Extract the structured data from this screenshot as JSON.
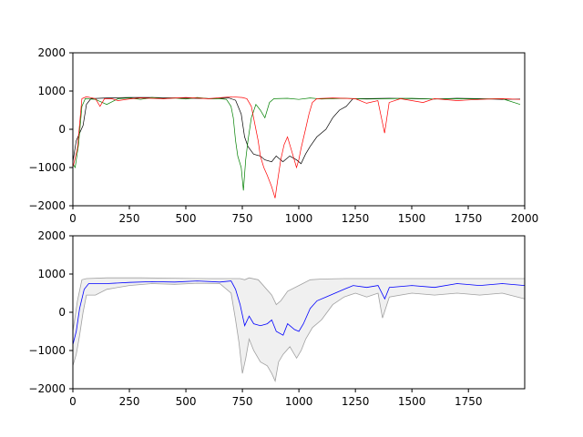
{
  "chart_data": [
    {
      "type": "line",
      "xlim": [
        0,
        2000
      ],
      "ylim": [
        -2000,
        2000
      ],
      "xticks": [
        0,
        250,
        500,
        750,
        1000,
        1250,
        1500,
        1750,
        2000
      ],
      "yticks": [
        -2000,
        -1000,
        0,
        1000,
        2000
      ],
      "xtick_labels": [
        "0",
        "250",
        "500",
        "750",
        "1000",
        "1250",
        "1500",
        "1750",
        "2000"
      ],
      "ytick_labels": [
        "−2000",
        "−1000",
        "0",
        "1000",
        "2000"
      ],
      "grid": false,
      "series": [
        {
          "color": "#000000",
          "points": [
            [
              0,
              -850
            ],
            [
              15,
              -300
            ],
            [
              30,
              -100
            ],
            [
              45,
              100
            ],
            [
              60,
              650
            ],
            [
              80,
              800
            ],
            [
              150,
              820
            ],
            [
              250,
              830
            ],
            [
              350,
              830
            ],
            [
              450,
              820
            ],
            [
              550,
              810
            ],
            [
              620,
              800
            ],
            [
              690,
              820
            ],
            [
              720,
              760
            ],
            [
              745,
              400
            ],
            [
              760,
              -200
            ],
            [
              775,
              -450
            ],
            [
              800,
              -650
            ],
            [
              830,
              -700
            ],
            [
              850,
              -800
            ],
            [
              880,
              -850
            ],
            [
              900,
              -700
            ],
            [
              930,
              -850
            ],
            [
              960,
              -700
            ],
            [
              990,
              -800
            ],
            [
              1010,
              -900
            ],
            [
              1030,
              -650
            ],
            [
              1050,
              -450
            ],
            [
              1080,
              -200
            ],
            [
              1120,
              0
            ],
            [
              1150,
              300
            ],
            [
              1180,
              500
            ],
            [
              1210,
              600
            ],
            [
              1240,
              800
            ],
            [
              1300,
              800
            ],
            [
              1400,
              810
            ],
            [
              1500,
              800
            ],
            [
              1600,
              790
            ],
            [
              1700,
              810
            ],
            [
              1800,
              800
            ],
            [
              1900,
              780
            ],
            [
              1980,
              790
            ]
          ]
        },
        {
          "color": "#008000",
          "points": [
            [
              0,
              -900
            ],
            [
              10,
              -1000
            ],
            [
              25,
              -400
            ],
            [
              40,
              600
            ],
            [
              55,
              800
            ],
            [
              100,
              780
            ],
            [
              150,
              650
            ],
            [
              200,
              800
            ],
            [
              250,
              820
            ],
            [
              300,
              780
            ],
            [
              350,
              830
            ],
            [
              400,
              800
            ],
            [
              450,
              820
            ],
            [
              500,
              790
            ],
            [
              550,
              830
            ],
            [
              600,
              800
            ],
            [
              650,
              800
            ],
            [
              680,
              780
            ],
            [
              700,
              600
            ],
            [
              710,
              300
            ],
            [
              720,
              -300
            ],
            [
              730,
              -700
            ],
            [
              745,
              -1000
            ],
            [
              755,
              -1600
            ],
            [
              765,
              -800
            ],
            [
              775,
              -300
            ],
            [
              790,
              300
            ],
            [
              810,
              650
            ],
            [
              830,
              500
            ],
            [
              850,
              300
            ],
            [
              870,
              700
            ],
            [
              890,
              800
            ],
            [
              950,
              810
            ],
            [
              1000,
              780
            ],
            [
              1050,
              820
            ],
            [
              1100,
              790
            ],
            [
              1150,
              800
            ],
            [
              1200,
              810
            ],
            [
              1300,
              790
            ],
            [
              1400,
              800
            ],
            [
              1500,
              810
            ],
            [
              1600,
              790
            ],
            [
              1700,
              800
            ],
            [
              1800,
              790
            ],
            [
              1900,
              800
            ],
            [
              1980,
              650
            ]
          ]
        },
        {
          "color": "#ff0000",
          "points": [
            [
              0,
              -1000
            ],
            [
              20,
              -500
            ],
            [
              40,
              800
            ],
            [
              60,
              850
            ],
            [
              100,
              800
            ],
            [
              120,
              600
            ],
            [
              140,
              800
            ],
            [
              170,
              800
            ],
            [
              200,
              750
            ],
            [
              260,
              800
            ],
            [
              300,
              820
            ],
            [
              400,
              800
            ],
            [
              500,
              830
            ],
            [
              600,
              800
            ],
            [
              700,
              850
            ],
            [
              750,
              830
            ],
            [
              770,
              800
            ],
            [
              790,
              600
            ],
            [
              800,
              300
            ],
            [
              810,
              0
            ],
            [
              820,
              -300
            ],
            [
              830,
              -700
            ],
            [
              845,
              -1000
            ],
            [
              860,
              -1200
            ],
            [
              880,
              -1500
            ],
            [
              895,
              -1800
            ],
            [
              905,
              -1400
            ],
            [
              920,
              -800
            ],
            [
              935,
              -400
            ],
            [
              950,
              -200
            ],
            [
              970,
              -600
            ],
            [
              990,
              -1000
            ],
            [
              1000,
              -800
            ],
            [
              1010,
              -500
            ],
            [
              1030,
              0
            ],
            [
              1045,
              400
            ],
            [
              1060,
              700
            ],
            [
              1080,
              800
            ],
            [
              1150,
              820
            ],
            [
              1250,
              800
            ],
            [
              1300,
              680
            ],
            [
              1350,
              750
            ],
            [
              1380,
              -100
            ],
            [
              1400,
              700
            ],
            [
              1450,
              800
            ],
            [
              1500,
              750
            ],
            [
              1550,
              700
            ],
            [
              1600,
              800
            ],
            [
              1700,
              750
            ],
            [
              1800,
              780
            ],
            [
              1900,
              800
            ],
            [
              1980,
              780
            ]
          ]
        }
      ]
    },
    {
      "type": "area",
      "xlim": [
        0,
        1999
      ],
      "ylim": [
        -2000,
        2000
      ],
      "xticks": [
        0,
        250,
        500,
        750,
        1000,
        1250,
        1500,
        1750
      ],
      "yticks": [
        -2000,
        -1000,
        0,
        1000,
        2000
      ],
      "xtick_labels": [
        "0",
        "250",
        "500",
        "750",
        "1000",
        "1250",
        "1500",
        "1750"
      ],
      "ytick_labels": [
        "−2000",
        "−1000",
        "0",
        "1000",
        "2000"
      ],
      "grid": false,
      "band_fill": "#f0f0f0",
      "band_edge": "#a0a0a0",
      "mean_color": "#0000ff",
      "upper": [
        [
          0,
          -500
        ],
        [
          20,
          300
        ],
        [
          40,
          850
        ],
        [
          60,
          880
        ],
        [
          150,
          900
        ],
        [
          300,
          900
        ],
        [
          450,
          890
        ],
        [
          600,
          880
        ],
        [
          700,
          880
        ],
        [
          740,
          880
        ],
        [
          760,
          850
        ],
        [
          780,
          900
        ],
        [
          820,
          850
        ],
        [
          850,
          650
        ],
        [
          880,
          450
        ],
        [
          900,
          200
        ],
        [
          920,
          300
        ],
        [
          950,
          550
        ],
        [
          1000,
          700
        ],
        [
          1050,
          850
        ],
        [
          1100,
          870
        ],
        [
          1200,
          880
        ],
        [
          1400,
          880
        ],
        [
          1600,
          880
        ],
        [
          1800,
          880
        ],
        [
          1999,
          880
        ]
      ],
      "lower": [
        [
          0,
          -1400
        ],
        [
          15,
          -1100
        ],
        [
          30,
          -600
        ],
        [
          45,
          0
        ],
        [
          60,
          450
        ],
        [
          100,
          450
        ],
        [
          150,
          600
        ],
        [
          250,
          700
        ],
        [
          350,
          750
        ],
        [
          450,
          730
        ],
        [
          550,
          760
        ],
        [
          650,
          750
        ],
        [
          700,
          500
        ],
        [
          720,
          -200
        ],
        [
          735,
          -800
        ],
        [
          750,
          -1600
        ],
        [
          765,
          -1200
        ],
        [
          780,
          -700
        ],
        [
          800,
          -1000
        ],
        [
          830,
          -1300
        ],
        [
          860,
          -1400
        ],
        [
          880,
          -1600
        ],
        [
          895,
          -1800
        ],
        [
          910,
          -1300
        ],
        [
          930,
          -1100
        ],
        [
          960,
          -900
        ],
        [
          990,
          -1200
        ],
        [
          1010,
          -1000
        ],
        [
          1030,
          -700
        ],
        [
          1060,
          -400
        ],
        [
          1100,
          -200
        ],
        [
          1150,
          200
        ],
        [
          1200,
          400
        ],
        [
          1250,
          500
        ],
        [
          1300,
          400
        ],
        [
          1350,
          500
        ],
        [
          1370,
          -150
        ],
        [
          1400,
          400
        ],
        [
          1500,
          500
        ],
        [
          1600,
          450
        ],
        [
          1700,
          500
        ],
        [
          1800,
          450
        ],
        [
          1900,
          500
        ],
        [
          1999,
          350
        ]
      ],
      "mean": [
        [
          0,
          -850
        ],
        [
          15,
          -500
        ],
        [
          30,
          100
        ],
        [
          50,
          600
        ],
        [
          70,
          750
        ],
        [
          150,
          750
        ],
        [
          250,
          780
        ],
        [
          350,
          800
        ],
        [
          450,
          790
        ],
        [
          550,
          820
        ],
        [
          650,
          790
        ],
        [
          700,
          820
        ],
        [
          720,
          600
        ],
        [
          740,
          200
        ],
        [
          760,
          -350
        ],
        [
          780,
          -100
        ],
        [
          800,
          -300
        ],
        [
          830,
          -350
        ],
        [
          860,
          -300
        ],
        [
          880,
          -200
        ],
        [
          900,
          -500
        ],
        [
          930,
          -600
        ],
        [
          950,
          -300
        ],
        [
          980,
          -450
        ],
        [
          1000,
          -500
        ],
        [
          1020,
          -300
        ],
        [
          1050,
          100
        ],
        [
          1080,
          300
        ],
        [
          1120,
          400
        ],
        [
          1160,
          500
        ],
        [
          1200,
          600
        ],
        [
          1240,
          700
        ],
        [
          1300,
          650
        ],
        [
          1350,
          700
        ],
        [
          1380,
          350
        ],
        [
          1400,
          650
        ],
        [
          1500,
          700
        ],
        [
          1600,
          650
        ],
        [
          1700,
          750
        ],
        [
          1800,
          700
        ],
        [
          1900,
          750
        ],
        [
          1999,
          700
        ]
      ]
    }
  ]
}
